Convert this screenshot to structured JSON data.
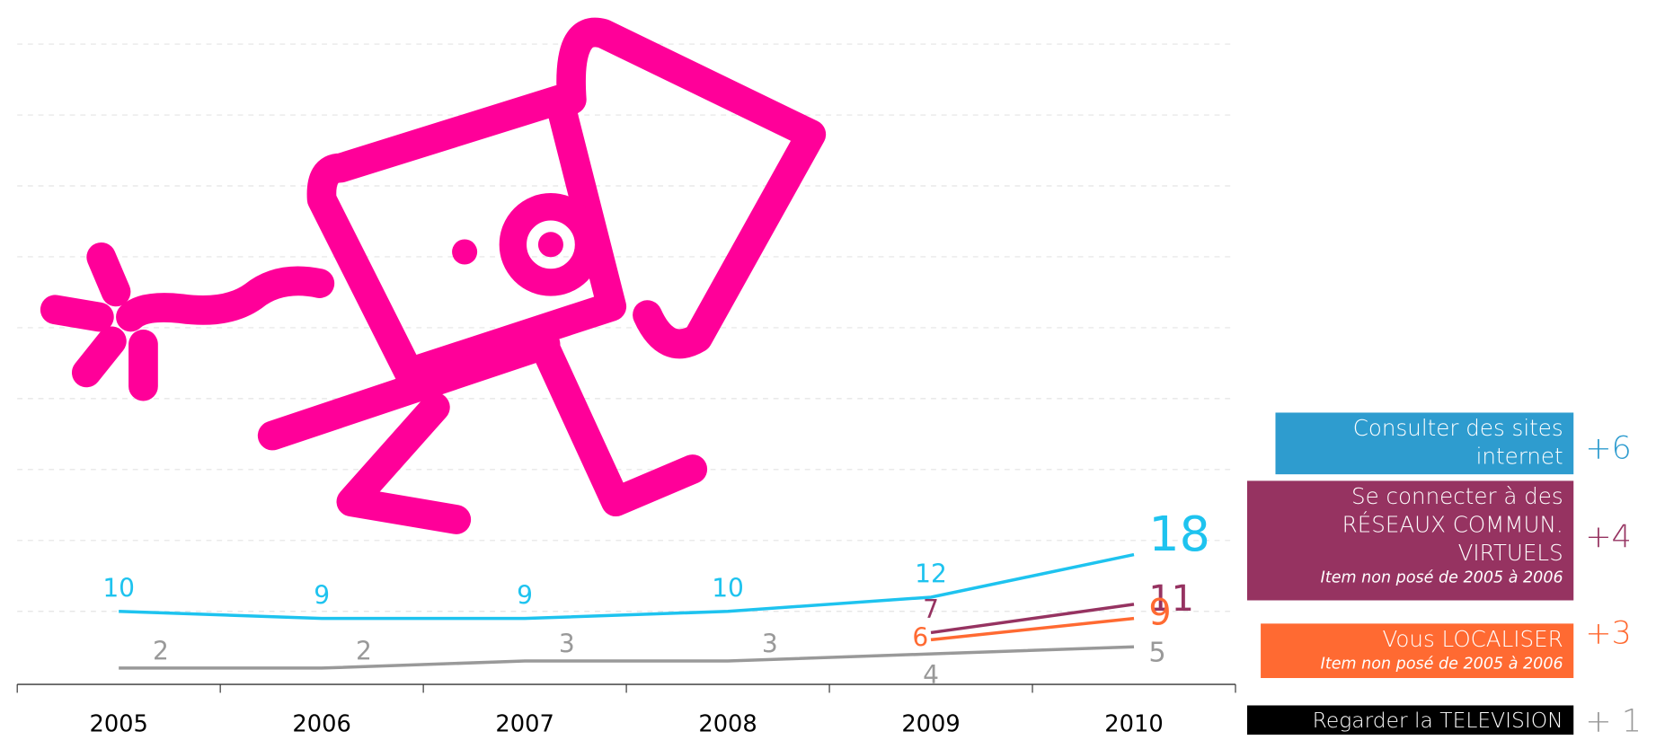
{
  "chart_data": {
    "type": "line",
    "categories": [
      "2005",
      "2006",
      "2007",
      "2008",
      "2009",
      "2010"
    ],
    "ylim": [
      0,
      90
    ],
    "yticks": [
      10,
      20,
      30,
      40,
      50,
      60,
      70,
      80,
      90
    ],
    "grid": true,
    "series": [
      {
        "name": "Consulter des sites internet",
        "color": "#1ec3ef",
        "legend_color": "#2e9ccf",
        "change": "+6",
        "values": [
          10,
          9,
          9,
          10,
          12,
          18
        ]
      },
      {
        "name": "Se connecter à des RÉSEAUX COMMUN. VIRTUELS",
        "note": "Item non posé de 2005 à 2006",
        "color": "#963361",
        "legend_color": "#963361",
        "change": "+4",
        "values": [
          null,
          null,
          null,
          null,
          7,
          11
        ]
      },
      {
        "name": "Vous LOCALISER",
        "note": "Item non posé de 2005 à 2006",
        "color": "#ff6a32",
        "legend_color": "#ff6a32",
        "change": "+3",
        "values": [
          null,
          null,
          null,
          null,
          6,
          9
        ]
      },
      {
        "name": "Regarder la TELEVISION",
        "color": "#999999",
        "legend_color": "#000000",
        "change": "+ 1",
        "values": [
          2,
          2,
          3,
          3,
          4,
          5
        ]
      }
    ]
  }
}
